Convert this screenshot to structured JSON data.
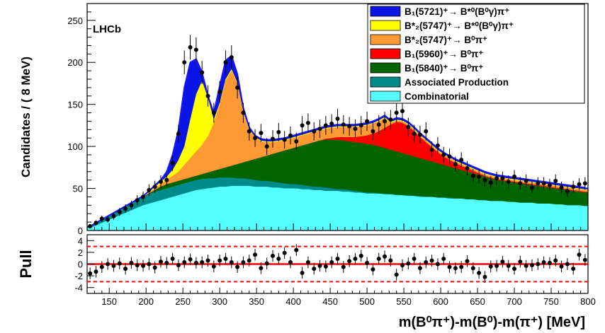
{
  "chart_data": [
    {
      "panel": "main",
      "type": "area",
      "experiment_label": "LHCb",
      "ylabel": "Candidates / ( 8 MeV)",
      "xlim": [
        120,
        800
      ],
      "ylim": [
        0,
        270
      ],
      "x_ticks": [
        150,
        200,
        250,
        300,
        350,
        400,
        450,
        500,
        550,
        600,
        650,
        700,
        750,
        800
      ],
      "y_ticks": [
        0,
        50,
        100,
        150,
        200,
        250
      ],
      "grid": false,
      "legend_position": "top-right",
      "legend": [
        {
          "label": "B₁(5721)⁺→ B*⁰(B⁰γ)π⁺",
          "color": "#0a14e6"
        },
        {
          "label": "B*₂(5747)⁺→ B*⁰(B⁰γ)π⁺",
          "color": "#ffff00"
        },
        {
          "label": "B*₂(5747)⁺→ B⁰π⁺",
          "color": "#ff9933"
        },
        {
          "label": "B₁(5960)⁺→ B⁰π⁺",
          "color": "#ff0000"
        },
        {
          "label": "B₁(5840)⁺→ B⁰π⁺",
          "color": "#006400"
        },
        {
          "label": "Associated Production",
          "color": "#008b8b"
        },
        {
          "label": "Combinatorial",
          "color": "#55ffff"
        }
      ],
      "x": [
        124,
        132,
        140,
        148,
        156,
        164,
        172,
        180,
        188,
        196,
        204,
        212,
        220,
        228,
        236,
        244,
        252,
        260,
        268,
        276,
        284,
        292,
        300,
        308,
        316,
        324,
        332,
        340,
        348,
        356,
        364,
        372,
        380,
        388,
        396,
        404,
        412,
        420,
        428,
        436,
        444,
        452,
        460,
        468,
        476,
        484,
        492,
        500,
        508,
        516,
        524,
        532,
        540,
        548,
        556,
        564,
        572,
        580,
        588,
        596,
        604,
        612,
        620,
        628,
        636,
        644,
        652,
        660,
        668,
        676,
        684,
        692,
        700,
        708,
        716,
        724,
        732,
        740,
        748,
        756,
        764,
        772,
        780,
        788,
        796
      ],
      "series": [
        {
          "name": "Combinatorial",
          "color": "#55ffff",
          "values": [
            3,
            6,
            9,
            12,
            15,
            18,
            21,
            24,
            27,
            30,
            32,
            34,
            36,
            38,
            40,
            42,
            44,
            46,
            48,
            49,
            50,
            51,
            52,
            52,
            53,
            53,
            53,
            53,
            52,
            52,
            52,
            51,
            51,
            50,
            50,
            50,
            49,
            49,
            48,
            48,
            47,
            47,
            47,
            46,
            46,
            45,
            45,
            44,
            44,
            44,
            43,
            43,
            42,
            42,
            41,
            41,
            40,
            40,
            40,
            39,
            39,
            38,
            38,
            38,
            37,
            37,
            36,
            36,
            35,
            35,
            35,
            34,
            34,
            33,
            33,
            33,
            32,
            32,
            32,
            31,
            31,
            30,
            30,
            30,
            29
          ]
        },
        {
          "name": "Associated Production",
          "color": "#008b8b",
          "values": [
            4,
            8,
            12,
            16,
            20,
            24,
            28,
            32,
            36,
            40,
            43,
            46,
            48,
            50,
            52,
            54,
            56,
            58,
            60,
            61,
            62,
            62,
            63,
            63,
            63,
            62,
            62,
            61,
            60,
            59,
            59,
            58,
            57,
            56,
            55,
            55,
            54,
            53,
            52,
            52,
            51,
            50,
            49,
            49,
            48,
            47,
            46,
            45,
            45,
            44,
            44,
            43,
            43,
            42,
            42,
            41,
            41,
            40,
            40,
            39,
            39,
            39,
            38,
            38,
            37,
            37,
            36,
            36,
            35,
            35,
            35,
            34,
            34,
            33,
            33,
            33,
            32,
            32,
            32,
            31,
            31,
            30,
            30,
            30,
            29
          ]
        },
        {
          "name": "B₁(5840)⁺→ B⁰π⁺",
          "color": "#006400",
          "values": [
            4,
            8,
            12,
            16,
            20,
            24,
            28,
            32,
            36,
            40,
            44,
            48,
            52,
            55,
            57,
            59,
            61,
            63,
            65,
            67,
            69,
            71,
            73,
            75,
            77,
            79,
            81,
            83,
            85,
            87,
            89,
            91,
            93,
            95,
            97,
            99,
            101,
            103,
            105,
            107,
            108,
            108,
            108,
            107,
            106,
            105,
            104,
            103,
            102,
            100,
            98,
            96,
            94,
            92,
            90,
            88,
            86,
            84,
            82,
            80,
            78,
            76,
            74,
            72,
            70,
            68,
            66,
            64,
            62,
            60,
            59,
            58,
            57,
            56,
            55,
            54,
            53,
            52,
            51,
            50,
            49,
            48,
            47,
            46,
            45
          ]
        },
        {
          "name": "B₁(5960)⁺→ B⁰π⁺",
          "color": "#ff0000",
          "values": [
            4,
            8,
            12,
            16,
            20,
            24,
            28,
            32,
            36,
            40,
            44,
            48,
            52,
            55,
            57,
            59,
            61,
            63,
            65,
            67,
            69,
            71,
            73,
            75,
            77,
            79,
            81,
            83,
            85,
            87,
            89,
            91,
            93,
            95,
            97,
            99,
            101,
            103,
            105,
            107,
            109,
            110,
            111,
            111,
            111,
            111,
            112,
            113,
            115,
            118,
            122,
            126,
            129,
            128,
            124,
            118,
            111,
            105,
            99,
            93,
            88,
            84,
            80,
            77,
            74,
            71,
            68,
            65,
            63,
            61,
            60,
            59,
            58,
            57,
            56,
            55,
            54,
            53,
            52,
            51,
            50,
            49,
            48,
            47,
            46
          ]
        },
        {
          "name": "B*₂(5747)⁺→ B⁰π⁺",
          "color": "#ff9933",
          "values": [
            4,
            8,
            12,
            16,
            20,
            24,
            28,
            32,
            36,
            40,
            45,
            50,
            55,
            60,
            65,
            70,
            78,
            86,
            94,
            102,
            112,
            128,
            150,
            178,
            190,
            175,
            140,
            120,
            110,
            106,
            105,
            105,
            106,
            107,
            109,
            111,
            113,
            115,
            117,
            119,
            121,
            122,
            123,
            123,
            123,
            123,
            124,
            125,
            127,
            130,
            134,
            128,
            131,
            130,
            126,
            120,
            113,
            107,
            101,
            95,
            90,
            86,
            82,
            79,
            76,
            73,
            70,
            67,
            65,
            63,
            62,
            61,
            60,
            59,
            58,
            57,
            56,
            55,
            54,
            53,
            52,
            51,
            50,
            49,
            48
          ]
        },
        {
          "name": "B*₂(5747)⁺→ B*⁰(B⁰γ)π⁺",
          "color": "#ffff00",
          "values": [
            4,
            8,
            12,
            16,
            20,
            24,
            28,
            32,
            36,
            40,
            46,
            52,
            58,
            64,
            72,
            84,
            100,
            132,
            162,
            178,
            158,
            132,
            152,
            180,
            192,
            176,
            141,
            121,
            111,
            107,
            106,
            106,
            107,
            108,
            110,
            112,
            114,
            116,
            118,
            120,
            122,
            123,
            124,
            124,
            124,
            124,
            125,
            126,
            128,
            131,
            135,
            129,
            132,
            131,
            127,
            121,
            114,
            108,
            102,
            96,
            91,
            87,
            83,
            80,
            77,
            74,
            71,
            68,
            66,
            64,
            63,
            62,
            61,
            60,
            59,
            58,
            57,
            56,
            55,
            54,
            53,
            52,
            51,
            50,
            49
          ]
        },
        {
          "name": "B₁(5721)⁺→ B*⁰(B⁰γ)π⁺",
          "color": "#0a14e6",
          "values": [
            5,
            9,
            13,
            17,
            21,
            25,
            29,
            33,
            37,
            41,
            47,
            54,
            60,
            70,
            90,
            120,
            170,
            200,
            204,
            188,
            160,
            140,
            172,
            202,
            208,
            186,
            146,
            123,
            113,
            109,
            108,
            108,
            109,
            110,
            112,
            114,
            116,
            118,
            120,
            122,
            124,
            125,
            126,
            126,
            126,
            126,
            127,
            128,
            130,
            133,
            137,
            131,
            134,
            133,
            129,
            123,
            116,
            110,
            104,
            98,
            93,
            89,
            85,
            82,
            79,
            76,
            73,
            70,
            68,
            66,
            65,
            64,
            63,
            62,
            61,
            60,
            59,
            58,
            57,
            56,
            55,
            54,
            53,
            52,
            51
          ]
        },
        {
          "name": "data",
          "type": "scatter",
          "color": "#000000",
          "values": [
            5,
            9,
            14,
            13,
            17,
            22,
            26,
            30,
            36,
            40,
            48,
            52,
            58,
            60,
            80,
            115,
            200,
            218,
            215,
            188,
            160,
            140,
            165,
            200,
            206,
            170,
            140,
            118,
            110,
            116,
            100,
            109,
            117,
            108,
            113,
            106,
            125,
            128,
            118,
            121,
            125,
            127,
            133,
            126,
            124,
            121,
            125,
            130,
            118,
            126,
            130,
            132,
            140,
            142,
            123,
            115,
            114,
            118,
            96,
            101,
            90,
            88,
            79,
            84,
            74,
            65,
            64,
            60,
            57,
            62,
            62,
            58,
            64,
            56,
            59,
            51,
            56,
            56,
            54,
            59,
            51,
            47,
            52,
            55,
            56
          ]
        }
      ]
    },
    {
      "panel": "pull",
      "type": "scatter",
      "ylabel": "Pull",
      "xlabel": "m(B⁰π⁺)-m(B⁰)-m(π⁺) [MeV]",
      "xlim": [
        120,
        800
      ],
      "ylim": [
        -5,
        5
      ],
      "y_ticks": [
        -4,
        -2,
        0,
        2,
        4
      ],
      "reference_lines": [
        3,
        -3
      ],
      "values": [
        -1.6,
        -1.3,
        -0.5,
        0.0,
        -0.3,
        0.1,
        -0.8,
        0.2,
        -0.2,
        -0.3,
        0.0,
        -0.6,
        0.4,
        0.2,
        0.9,
        -0.2,
        0.3,
        0.8,
        0.2,
        0.3,
        0.6,
        -0.4,
        0.6,
        0.9,
        0.3,
        -0.5,
        0.3,
        0.6,
        1.6,
        -0.7,
        0.1,
        1.4,
        0.9,
        1.9,
        0.3,
        2.4,
        -1.5,
        0.3,
        -0.8,
        -0.3,
        -0.4,
        0.3,
        0.9,
        -0.5,
        0.5,
        0.9,
        1.4,
        0.2,
        -0.9,
        0.9,
        1.3,
        0.6,
        -1.8,
        -0.2,
        0.1,
        0.9,
        -0.7,
        0.3,
        0.6,
        0.0,
        0.9,
        -0.5,
        -0.7,
        -0.5,
        0.5,
        -0.7,
        -1.5,
        -2.2,
        -0.4,
        -0.3,
        0.4,
        -0.3,
        -0.8,
        0.4,
        -0.3,
        -0.2,
        0.0,
        0.3,
        0.2,
        0.6,
        -0.4,
        0.0,
        -0.8,
        1.6,
        0.7
      ]
    }
  ]
}
